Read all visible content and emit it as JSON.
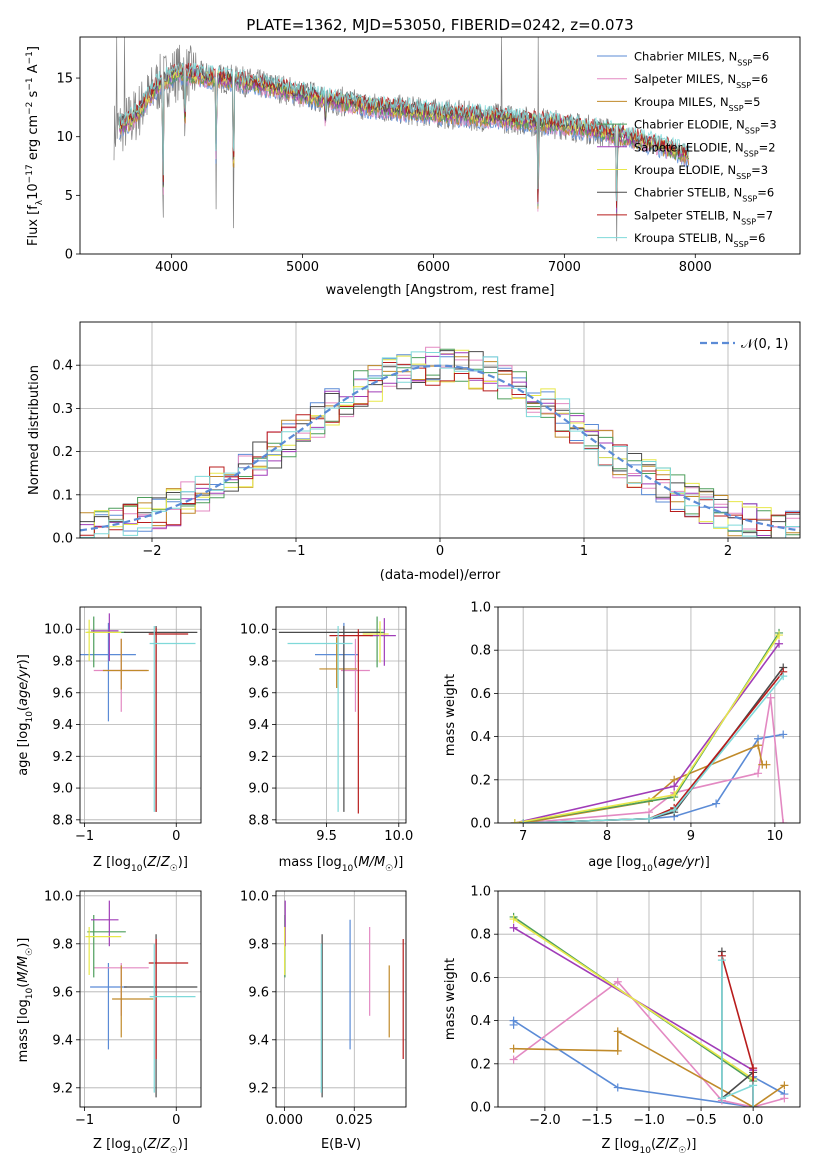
{
  "figure_title": "PLATE=1362, MJD=53050, FIBERID=0242, z=0.073",
  "colors": {
    "Chabrier MILES": "#5b8bd6",
    "Salpeter MILES": "#e389c2",
    "Kroupa MILES": "#c08a2a",
    "Chabrier ELODIE": "#4d9e5b",
    "Salpeter ELODIE": "#a03cb8",
    "Kroupa ELODIE": "#e8e84a",
    "Chabrier STELIB": "#4a4a4a",
    "Salpeter STELIB": "#b81c1c",
    "Kroupa STELIB": "#7fd9d9",
    "data": "#808080",
    "gaussian": "#5b8bd6"
  },
  "chart_data": [
    {
      "id": "spectrum",
      "type": "line",
      "title": "PLATE=1362, MJD=53050, FIBERID=0242, z=0.073",
      "xlabel": "wavelength [Angstrom, rest frame]",
      "ylabel": "Flux [f_λ 10^-17 erg cm^-2 s^-1 A^-1]",
      "xlim": [
        3300,
        8800
      ],
      "ylim": [
        0,
        18.5
      ],
      "xticks": [
        "4000",
        "5000",
        "6000",
        "7000",
        "8000"
      ],
      "yticks": [
        "0",
        "5",
        "10",
        "15"
      ],
      "grid": false,
      "legend_position": "top-right",
      "legend": [
        "Chabrier MILES, N_SSP=6",
        "Salpeter MILES, N_SSP=6",
        "Kroupa MILES, N_SSP=5",
        "Chabrier ELODIE, N_SSP=3",
        "Salpeter ELODIE, N_SSP=2",
        "Kroupa ELODIE, N_SSP=3",
        "Chabrier STELIB, N_SSP=6",
        "Salpeter STELIB, N_SSP=7",
        "Kroupa STELIB, N_SSP=6"
      ],
      "continuum": {
        "x": [
          3560,
          3700,
          3900,
          4050,
          4200,
          4500,
          4800,
          5000,
          5500,
          6000,
          6500,
          7000,
          7400,
          7800,
          8000
        ],
        "y": [
          10.5,
          11.5,
          14.5,
          15.5,
          15.2,
          14.8,
          14.2,
          13.6,
          12.6,
          12.0,
          11.6,
          11.0,
          10.2,
          9.0,
          8.2
        ]
      },
      "absorption_lines": [
        {
          "x": 3934,
          "depth": 1.0
        },
        {
          "x": 4101,
          "depth": 0.5
        },
        {
          "x": 4340,
          "depth": 0.7
        },
        {
          "x": 4473,
          "depth": 1.0
        },
        {
          "x": 5175,
          "depth": 0.25
        },
        {
          "x": 6800,
          "depth": 1.0
        },
        {
          "x": 7400,
          "depth": 1.0
        }
      ],
      "data_spikes": [
        {
          "x": 3580,
          "y": 18.5
        },
        {
          "x": 3640,
          "y": 18.5
        },
        {
          "x": 6520,
          "y": 18.5
        },
        {
          "x": 6800,
          "y": 18.5
        }
      ],
      "data_end_x": 7450,
      "model_end_x": 7950
    },
    {
      "id": "residuals",
      "type": "line",
      "xlabel": "(data-model)/error",
      "ylabel": "Normed distribution",
      "xlim": [
        -2.5,
        2.5
      ],
      "ylim": [
        0,
        0.5
      ],
      "xticks": [
        "−2",
        "−1",
        "0",
        "1",
        "2"
      ],
      "yticks": [
        "0.0",
        "0.1",
        "0.2",
        "0.3",
        "0.4"
      ],
      "grid": true,
      "legend_position": "top-right",
      "legend": [
        "𝒩(0, 1)"
      ],
      "bin_width": 0.1
    },
    {
      "id": "age_vs_Z",
      "type": "scatter",
      "xlabel": "Z [log10(Z/Z☉)]",
      "ylabel": "age [log10(age/yr)]",
      "xlim": [
        -1.05,
        0.27
      ],
      "ylim": [
        8.78,
        10.14
      ],
      "xticks": [
        "−1",
        "0"
      ],
      "yticks": [
        "8.8",
        "9.0",
        "9.2",
        "9.4",
        "9.6",
        "9.8",
        "10.0"
      ],
      "grid": true,
      "points": [
        {
          "series": "Chabrier MILES",
          "x": -0.74,
          "y": 9.84,
          "xerr": [
            0.5,
            0.3
          ],
          "yerr": [
            0.42,
            0.2
          ]
        },
        {
          "series": "Salpeter MILES",
          "x": -0.6,
          "y": 9.74,
          "xerr": [
            0.3,
            0.28
          ],
          "yerr": [
            0.26,
            0.2
          ]
        },
        {
          "series": "Kroupa MILES",
          "x": -0.6,
          "y": 9.74,
          "xerr": [
            0.2,
            0.3
          ],
          "yerr": [
            0.12,
            0.2
          ]
        },
        {
          "series": "Chabrier ELODIE",
          "x": -0.9,
          "y": 9.98,
          "xerr": [
            0.07,
            0.35
          ],
          "yerr": [
            0.22,
            0.1
          ]
        },
        {
          "series": "Salpeter ELODIE",
          "x": -0.73,
          "y": 9.99,
          "xerr": [
            0.2,
            0.1
          ],
          "yerr": [
            0.19,
            0.11
          ]
        },
        {
          "series": "Kroupa ELODIE",
          "x": -0.95,
          "y": 9.98,
          "xerr": [
            0.04,
            0.35
          ],
          "yerr": [
            0.18,
            0.08
          ]
        },
        {
          "series": "Chabrier STELIB",
          "x": -0.22,
          "y": 9.98,
          "xerr": [
            0.35,
            0.45
          ],
          "yerr": [
            1.13,
            0.04
          ]
        },
        {
          "series": "Salpeter STELIB",
          "x": -0.22,
          "y": 9.97,
          "xerr": [
            0.08,
            0.35
          ],
          "yerr": [
            1.12,
            0.04
          ]
        },
        {
          "series": "Kroupa STELIB",
          "x": -0.24,
          "y": 9.91,
          "xerr": [
            0.05,
            0.45
          ],
          "yerr": [
            1.06,
            0.11
          ]
        }
      ]
    },
    {
      "id": "age_vs_mass",
      "type": "scatter",
      "xlabel": "mass [log10(M/M☉)]",
      "ylabel": "",
      "xlim": [
        9.15,
        10.05
      ],
      "ylim": [
        8.78,
        10.14
      ],
      "xticks": [
        "9.5",
        "10.0"
      ],
      "yticks": [
        "8.8",
        "9.0",
        "9.2",
        "9.4",
        "9.6",
        "9.8",
        "10.0"
      ],
      "grid": true,
      "points": [
        {
          "series": "Chabrier MILES",
          "x": 9.62,
          "y": 9.84,
          "xerr": [
            0.2,
            0.1
          ],
          "yerr": [
            0.42,
            0.2
          ]
        },
        {
          "series": "Salpeter MILES",
          "x": 9.7,
          "y": 9.74,
          "xerr": [
            0.1,
            0.1
          ],
          "yerr": [
            0.26,
            0.2
          ]
        },
        {
          "series": "Kroupa MILES",
          "x": 9.57,
          "y": 9.75,
          "xerr": [
            0.12,
            0.14
          ],
          "yerr": [
            0.12,
            0.2
          ]
        },
        {
          "series": "Chabrier ELODIE",
          "x": 9.85,
          "y": 9.98,
          "xerr": [
            0.1,
            0.05
          ],
          "yerr": [
            0.22,
            0.1
          ]
        },
        {
          "series": "Salpeter ELODIE",
          "x": 9.9,
          "y": 9.96,
          "xerr": [
            0.1,
            0.08
          ],
          "yerr": [
            0.19,
            0.11
          ]
        },
        {
          "series": "Kroupa ELODIE",
          "x": 9.87,
          "y": 9.97,
          "xerr": [
            0.12,
            0.06
          ],
          "yerr": [
            0.18,
            0.08
          ]
        },
        {
          "series": "Chabrier STELIB",
          "x": 9.62,
          "y": 9.98,
          "xerr": [
            0.45,
            0.25
          ],
          "yerr": [
            1.13,
            0.04
          ]
        },
        {
          "series": "Salpeter STELIB",
          "x": 9.72,
          "y": 9.96,
          "xerr": [
            0.2,
            0.1
          ],
          "yerr": [
            1.12,
            0.04
          ]
        },
        {
          "series": "Kroupa STELIB",
          "x": 9.58,
          "y": 9.91,
          "xerr": [
            0.35,
            0.1
          ],
          "yerr": [
            1.06,
            0.11
          ]
        }
      ]
    },
    {
      "id": "weight_vs_age",
      "type": "line",
      "xlabel": "age [log10(age/yr)]",
      "ylabel": "mass weight",
      "xlim": [
        6.7,
        10.3
      ],
      "ylim": [
        0,
        1.0
      ],
      "xticks": [
        "7",
        "8",
        "9",
        "10"
      ],
      "yticks": [
        "0.0",
        "0.2",
        "0.4",
        "0.6",
        "0.8",
        "1.0"
      ],
      "grid": true,
      "series": [
        {
          "name": "Chabrier MILES",
          "x": [
            7.0,
            8.5,
            8.8,
            9.3,
            9.8,
            10.1
          ],
          "y": [
            0.0,
            0.02,
            0.03,
            0.09,
            0.39,
            0.41
          ]
        },
        {
          "name": "Salpeter MILES",
          "x": [
            7.0,
            8.5,
            8.8,
            9.8,
            9.95,
            10.1
          ],
          "y": [
            0.0,
            0.05,
            0.14,
            0.23,
            0.58,
            0.0
          ]
        },
        {
          "name": "Kroupa MILES",
          "x": [
            7.0,
            8.5,
            8.8,
            9.8,
            9.85,
            9.9
          ],
          "y": [
            0.0,
            0.1,
            0.2,
            0.36,
            0.27,
            0.27
          ]
        },
        {
          "name": "Chabrier ELODIE",
          "x": [
            6.9,
            8.8,
            10.05
          ],
          "y": [
            0.0,
            0.12,
            0.88
          ]
        },
        {
          "name": "Salpeter ELODIE",
          "x": [
            6.9,
            8.8,
            10.05
          ],
          "y": [
            0.0,
            0.17,
            0.83
          ]
        },
        {
          "name": "Kroupa ELODIE",
          "x": [
            6.9,
            8.8,
            10.05
          ],
          "y": [
            0.0,
            0.13,
            0.87
          ]
        },
        {
          "name": "Chabrier STELIB",
          "x": [
            7.0,
            8.5,
            8.8,
            10.1
          ],
          "y": [
            0.0,
            0.02,
            0.05,
            0.72
          ]
        },
        {
          "name": "Salpeter STELIB",
          "x": [
            7.0,
            8.5,
            8.8,
            10.1
          ],
          "y": [
            0.0,
            0.02,
            0.07,
            0.7
          ]
        },
        {
          "name": "Kroupa STELIB",
          "x": [
            7.0,
            8.5,
            8.8,
            10.1
          ],
          "y": [
            0.0,
            0.02,
            0.06,
            0.68
          ]
        }
      ]
    },
    {
      "id": "mass_vs_Z",
      "type": "scatter",
      "xlabel": "Z [log10(Z/Z☉)]",
      "ylabel": "mass [log10(M/M☉)]",
      "xlim": [
        -1.05,
        0.27
      ],
      "ylim": [
        9.12,
        10.02
      ],
      "xticks": [
        "−1",
        "0"
      ],
      "yticks": [
        "9.2",
        "9.4",
        "9.6",
        "9.8",
        "10.0"
      ],
      "grid": true,
      "points": [
        {
          "series": "Chabrier MILES",
          "x": -0.74,
          "y": 9.62,
          "xerr": [
            0.2,
            0.2
          ],
          "yerr": [
            0.26,
            0.1
          ]
        },
        {
          "series": "Salpeter MILES",
          "x": -0.6,
          "y": 9.7,
          "xerr": [
            0.3,
            0.3
          ],
          "yerr": [
            0.2,
            0.02
          ]
        },
        {
          "series": "Kroupa MILES",
          "x": -0.6,
          "y": 9.57,
          "xerr": [
            0.1,
            0.35
          ],
          "yerr": [
            0.16,
            0.14
          ]
        },
        {
          "series": "Chabrier ELODIE",
          "x": -0.9,
          "y": 9.85,
          "xerr": [
            0.07,
            0.35
          ],
          "yerr": [
            0.19,
            0.07
          ]
        },
        {
          "series": "Salpeter ELODIE",
          "x": -0.73,
          "y": 9.9,
          "xerr": [
            0.2,
            0.1
          ],
          "yerr": [
            0.11,
            0.08
          ]
        },
        {
          "series": "Kroupa ELODIE",
          "x": -0.95,
          "y": 9.83,
          "xerr": [
            0.04,
            0.35
          ],
          "yerr": [
            0.16,
            0.04
          ]
        },
        {
          "series": "Chabrier STELIB",
          "x": -0.22,
          "y": 9.62,
          "xerr": [
            0.35,
            0.45
          ],
          "yerr": [
            0.46,
            0.22
          ]
        },
        {
          "series": "Salpeter STELIB",
          "x": -0.22,
          "y": 9.72,
          "xerr": [
            0.08,
            0.35
          ],
          "yerr": [
            0.4,
            0.1
          ]
        },
        {
          "series": "Kroupa STELIB",
          "x": -0.24,
          "y": 9.58,
          "xerr": [
            0.05,
            0.45
          ],
          "yerr": [
            0.4,
            0.22
          ]
        }
      ]
    },
    {
      "id": "mass_vs_ebv",
      "type": "scatter",
      "xlabel": "E(B-V)",
      "ylabel": "",
      "xlim": [
        -0.003,
        0.0435
      ],
      "ylim": [
        9.12,
        10.02
      ],
      "xticks": [
        "0.000",
        "0.025"
      ],
      "yticks": [
        "9.2",
        "9.4",
        "9.6",
        "9.8",
        "10.0"
      ],
      "grid": true,
      "points": [
        {
          "series": "Chabrier MILES",
          "x": 0.0235,
          "y": 9.62,
          "xerr": [
            0,
            0
          ],
          "yerr": [
            0.26,
            0.28
          ]
        },
        {
          "series": "Salpeter MILES",
          "x": 0.0305,
          "y": 9.7,
          "xerr": [
            0,
            0
          ],
          "yerr": [
            0.2,
            0.17
          ]
        },
        {
          "series": "Kroupa MILES",
          "x": 0.0375,
          "y": 9.57,
          "xerr": [
            0,
            0
          ],
          "yerr": [
            0.16,
            0.14
          ]
        },
        {
          "series": "Chabrier ELODIE",
          "x": 0.0002,
          "y": 9.85,
          "xerr": [
            0,
            0
          ],
          "yerr": [
            0.19,
            0.07
          ]
        },
        {
          "series": "Salpeter ELODIE",
          "x": 0.0003,
          "y": 9.9,
          "xerr": [
            0,
            0
          ],
          "yerr": [
            0.11,
            0.08
          ]
        },
        {
          "series": "Kroupa ELODIE",
          "x": 0.0001,
          "y": 9.83,
          "xerr": [
            0,
            0
          ],
          "yerr": [
            0.16,
            0.04
          ]
        },
        {
          "series": "Chabrier STELIB",
          "x": 0.0135,
          "y": 9.62,
          "xerr": [
            0,
            0
          ],
          "yerr": [
            0.46,
            0.22
          ]
        },
        {
          "series": "Salpeter STELIB",
          "x": 0.0425,
          "y": 9.72,
          "xerr": [
            0,
            0
          ],
          "yerr": [
            0.4,
            0.1
          ]
        },
        {
          "series": "Kroupa STELIB",
          "x": 0.0132,
          "y": 9.58,
          "xerr": [
            0,
            0
          ],
          "yerr": [
            0.4,
            0.22
          ]
        }
      ]
    },
    {
      "id": "weight_vs_Z",
      "type": "line",
      "xlabel": "Z [log10(Z/Z☉)]",
      "ylabel": "mass weight",
      "xlim": [
        -2.45,
        0.45
      ],
      "ylim": [
        0,
        1.0
      ],
      "xticks": [
        "−2.0",
        "−1.5",
        "−1.0",
        "−0.5",
        "0.0"
      ],
      "yticks": [
        "0.0",
        "0.2",
        "0.4",
        "0.6",
        "0.8",
        "1.0"
      ],
      "grid": true,
      "series": [
        {
          "name": "Chabrier MILES",
          "x": [
            -2.3,
            -2.3,
            -1.3,
            0.0,
            0.0,
            0.3
          ],
          "y": [
            0.38,
            0.4,
            0.09,
            0.0,
            0.14,
            0.06
          ]
        },
        {
          "name": "Salpeter MILES",
          "x": [
            -2.3,
            -1.3,
            -0.3,
            0.0,
            0.3
          ],
          "y": [
            0.22,
            0.58,
            0.03,
            0.0,
            0.04
          ]
        },
        {
          "name": "Kroupa MILES",
          "x": [
            -2.3,
            -1.3,
            -1.3,
            0.0,
            0.3
          ],
          "y": [
            0.27,
            0.26,
            0.35,
            0.0,
            0.1
          ]
        },
        {
          "name": "Chabrier ELODIE",
          "x": [
            -2.3,
            0.0
          ],
          "y": [
            0.88,
            0.12
          ]
        },
        {
          "name": "Salpeter ELODIE",
          "x": [
            -2.3,
            0.0
          ],
          "y": [
            0.83,
            0.17
          ]
        },
        {
          "name": "Kroupa ELODIE",
          "x": [
            -2.3,
            0.0
          ],
          "y": [
            0.87,
            0.13
          ]
        },
        {
          "name": "Chabrier STELIB",
          "x": [
            -0.3,
            -0.3,
            0.0,
            0.0
          ],
          "y": [
            0.72,
            0.04,
            0.16,
            0.0
          ]
        },
        {
          "name": "Salpeter STELIB",
          "x": [
            -0.3,
            0.0,
            0.0
          ],
          "y": [
            0.7,
            0.18,
            0.0
          ]
        },
        {
          "name": "Kroupa STELIB",
          "x": [
            -0.3,
            -0.3,
            0.0,
            0.0
          ],
          "y": [
            0.68,
            0.04,
            0.1,
            0.0
          ]
        }
      ]
    }
  ]
}
